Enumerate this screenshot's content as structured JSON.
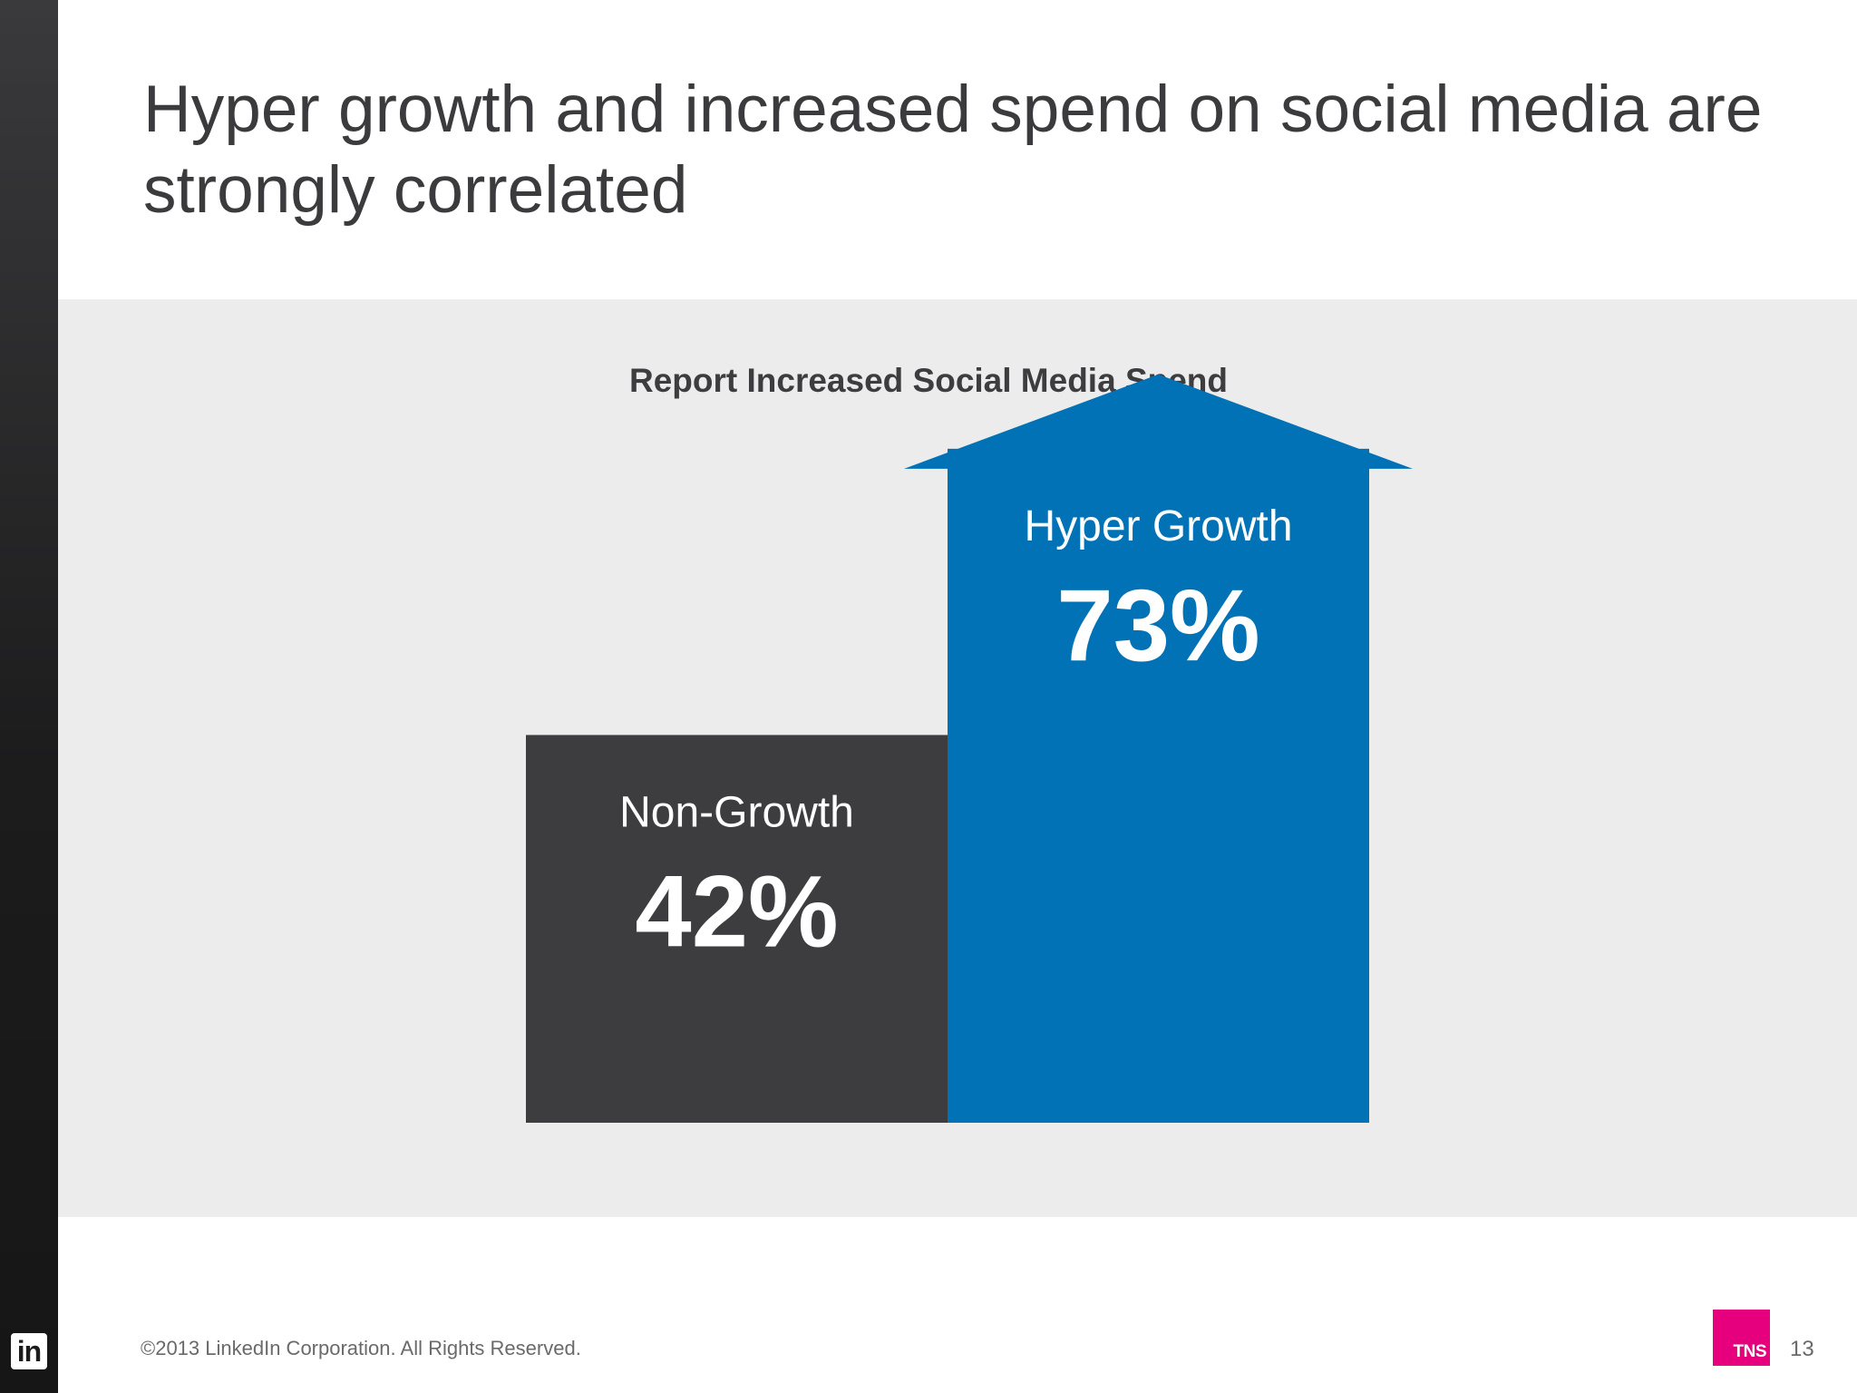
{
  "slide": {
    "title": "Hyper growth and increased spend on social media are strongly correlated",
    "footer": "©2013 LinkedIn Corporation. All Rights Reserved.",
    "page_number": "13",
    "left_logo_text": "in",
    "right_logo_text": "TNS"
  },
  "colors": {
    "non_growth": "#3d3d40",
    "hyper_growth": "#0072b5",
    "panel": "#ececed",
    "title_text": "#3b3b3d",
    "chart_title_text": "#3d3d3f",
    "tns_brand": "#e6007e"
  },
  "chart_data": {
    "type": "bar",
    "title": "Report Increased Social Media Spend",
    "categories": [
      "Non-Growth",
      "Hyper Growth"
    ],
    "values": [
      42,
      73
    ],
    "value_labels": [
      "42%",
      "73%"
    ],
    "unit": "%",
    "xlabel": "",
    "ylabel": "",
    "ylim": [
      0,
      100
    ],
    "grid": false,
    "legend": "none"
  }
}
